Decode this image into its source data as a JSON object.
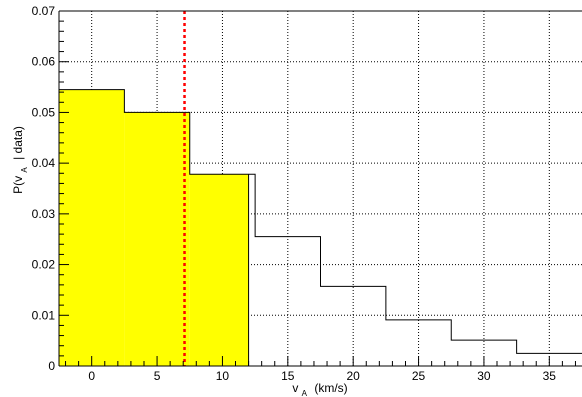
{
  "chart_data": {
    "type": "bar",
    "title": "",
    "xlabel": {
      "main": "v",
      "sub": "A",
      "unit": "(km/s)"
    },
    "ylabel": {
      "main": "P(v",
      "sub": "A",
      "rest": "| data)"
    },
    "xlim": [
      -2.5,
      37.5
    ],
    "ylim": [
      0,
      0.07
    ],
    "grid": true,
    "x_ticks": [
      0,
      5,
      10,
      15,
      20,
      25,
      30,
      35
    ],
    "x_tick_labels": [
      "0",
      "5",
      "10",
      "15",
      "20",
      "25",
      "30",
      "35"
    ],
    "y_ticks": [
      0,
      0.01,
      0.02,
      0.03,
      0.04,
      0.05,
      0.06,
      0.07
    ],
    "y_tick_labels": [
      "0",
      "0.01",
      "0.02",
      "0.03",
      "0.04",
      "0.05",
      "0.06",
      "0.07"
    ],
    "bin_edges": [
      -2.5,
      2.5,
      7.5,
      12.5,
      17.5,
      22.5,
      27.5,
      32.5,
      37.5
    ],
    "values": [
      0.0545,
      0.05,
      0.0378,
      0.0255,
      0.0157,
      0.0091,
      0.0051,
      0.0025
    ],
    "shaded_upper_x": 12.0,
    "vertical_line_x": 7.1,
    "colors": {
      "fill": "#ffff00",
      "outline": "#000000",
      "marker_line": "#ff0000",
      "grid": "#000000"
    }
  }
}
